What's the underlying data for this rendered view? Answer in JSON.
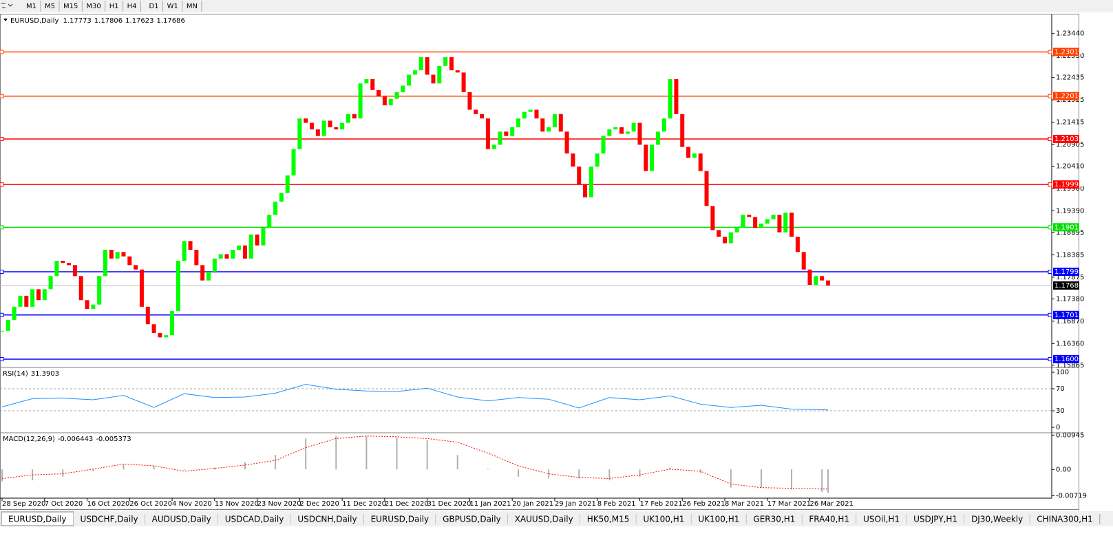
{
  "toolbar": {
    "timeframes": [
      "M1",
      "M5",
      "M15",
      "M30",
      "H1",
      "H4",
      "D1",
      "W1",
      "MN"
    ]
  },
  "tabs": [
    "EURUSD,Daily",
    "USDCHF,Daily",
    "AUDUSD,Daily",
    "USDCAD,Daily",
    "USDCNH,Daily",
    "EURUSD,Daily",
    "GBPUSD,Daily",
    "XAUUSD,Daily",
    "HK50,M15",
    "UK100,H1",
    "UK100,H1",
    "GER30,H1",
    "FRA40,H1",
    "USOil,H1",
    "USDJPY,H1",
    "DJ30,Weekly",
    "CHINA300,H1"
  ],
  "chart_data": [
    {
      "type": "candlestick",
      "title": "EURUSD,Daily",
      "quote": [
        1.17773,
        1.17806,
        1.17623,
        1.17686
      ],
      "up_color": "#00ff00",
      "down_color": "#ff0000",
      "values": [
        1.1665,
        1.169,
        1.172,
        1.1745,
        1.172,
        1.176,
        1.1735,
        1.176,
        1.179,
        1.1825,
        1.182,
        1.1815,
        1.179,
        1.1735,
        1.1715,
        1.1725,
        1.179,
        1.185,
        1.183,
        1.1845,
        1.1835,
        1.1815,
        1.1805,
        1.172,
        1.168,
        1.166,
        1.165,
        1.1655,
        1.171,
        1.1825,
        1.187,
        1.185,
        1.1815,
        1.178,
        1.18,
        1.183,
        1.184,
        1.183,
        1.185,
        1.186,
        1.183,
        1.1885,
        1.186,
        1.19,
        1.193,
        1.196,
        1.198,
        1.202,
        1.208,
        1.215,
        1.214,
        1.2125,
        1.211,
        1.2145,
        1.213,
        1.2125,
        1.214,
        1.216,
        1.215,
        1.223,
        1.224,
        1.2215,
        1.22,
        1.218,
        1.2195,
        1.221,
        1.2225,
        1.225,
        1.226,
        1.229,
        1.225,
        1.223,
        1.227,
        1.229,
        1.226,
        1.2255,
        1.221,
        1.217,
        1.216,
        1.215,
        1.208,
        1.209,
        1.212,
        1.211,
        1.213,
        1.215,
        1.2165,
        1.217,
        1.215,
        1.212,
        1.213,
        1.216,
        1.212,
        1.207,
        1.204,
        1.2,
        1.197,
        1.204,
        1.207,
        1.211,
        1.2125,
        1.213,
        1.2115,
        1.212,
        1.214,
        1.209,
        1.203,
        1.209,
        1.212,
        1.215,
        1.224,
        1.216,
        1.2085,
        1.206,
        1.207,
        1.203,
        1.195,
        1.1895,
        1.188,
        1.1865,
        1.189,
        1.19,
        1.193,
        1.1925,
        1.19,
        1.191,
        1.192,
        1.193,
        1.189,
        1.1935,
        1.188,
        1.1845,
        1.1805,
        1.177,
        1.179,
        1.178,
        1.17686
      ],
      "last": 1.17686,
      "xlim": [
        0,
        136
      ],
      "xticks": [
        {
          "value": 0,
          "label": "28 Sep 2020"
        },
        {
          "value": 7,
          "label": "7 Oct 2020"
        },
        {
          "value": 14,
          "label": "16 Oct 2020"
        },
        {
          "value": 21,
          "label": "26 Oct 2020"
        },
        {
          "value": 28,
          "label": "4 Nov 2020"
        },
        {
          "value": 35,
          "label": "13 Nov 2020"
        },
        {
          "value": 42,
          "label": "23 Nov 2020"
        },
        {
          "value": 49,
          "label": "2 Dec 2020"
        },
        {
          "value": 56,
          "label": "11 Dec 2020"
        },
        {
          "value": 63,
          "label": "21 Dec 2020"
        },
        {
          "value": 70,
          "label": "31 Dec 2020"
        },
        {
          "value": 77,
          "label": "11 Jan 2021"
        },
        {
          "value": 84,
          "label": "20 Jan 2021"
        },
        {
          "value": 91,
          "label": "29 Jan 2021"
        },
        {
          "value": 98,
          "label": "8 Feb 2021"
        },
        {
          "value": 105,
          "label": "17 Feb 2021"
        },
        {
          "value": 112,
          "label": "26 Feb 2021"
        },
        {
          "value": 119,
          "label": "8 Mar 2021"
        },
        {
          "value": 126,
          "label": "17 Mar 2021"
        },
        {
          "value": 133,
          "label": "26 Mar 2021"
        }
      ],
      "ylim": [
        1.1583,
        1.2386
      ],
      "yticks": [
        {
          "value": 1.2344,
          "label": "1.23440"
        },
        {
          "value": 1.2293,
          "label": "1.22930"
        },
        1.22435,
        1.21925,
        1.21415,
        1.20905,
        {
          "value": 1.2041,
          "label": "1.20410"
        },
        {
          "value": 1.199,
          "label": "1.19900"
        },
        {
          "value": 1.1939,
          "label": "1.19390"
        },
        1.18895,
        1.18385,
        1.17875,
        {
          "value": 1.1738,
          "label": "1.17380"
        },
        {
          "value": 1.1687,
          "label": "1.16870"
        },
        {
          "value": 1.1636,
          "label": "1.16360"
        },
        1.15865
      ],
      "levels": [
        {
          "value": 1.23019,
          "color": "#ff4000"
        },
        {
          "value": 1.2201,
          "label": "1.22010",
          "color": "#ff4000"
        },
        {
          "value": 1.21032,
          "color": "#ff0000"
        },
        {
          "value": 1.19992,
          "color": "#ff0000"
        },
        {
          "value": 1.19015,
          "color": "#00e000"
        },
        {
          "value": 1.17998,
          "color": "#0000ff"
        },
        {
          "value": 1.17012,
          "color": "#0000ff"
        },
        {
          "value": 1.16003,
          "color": "#0000ff"
        }
      ]
    },
    {
      "type": "line",
      "title": "RSI(14)",
      "color": "#1e90ff",
      "x": [
        0,
        5,
        10,
        15,
        20,
        25,
        30,
        35,
        40,
        45,
        50,
        55,
        60,
        65,
        70,
        75,
        80,
        85,
        90,
        95,
        100,
        105,
        110,
        115,
        120,
        125,
        130,
        135,
        136
      ],
      "values": [
        37,
        52,
        53,
        50,
        58,
        36,
        61,
        54,
        55,
        62,
        78,
        69,
        66,
        65,
        71,
        55,
        48,
        54,
        51,
        35,
        54,
        50,
        57,
        42,
        36,
        40,
        33,
        32,
        31.3903
      ],
      "xlim": [
        0,
        136
      ],
      "ylim": [
        -8.75,
        107.5
      ],
      "yticks": [
        0,
        30,
        70,
        100
      ],
      "levels": [
        30,
        70
      ]
    },
    {
      "type": "macd",
      "title": "MACD(12,26,9)",
      "main_color": "#b0b0b0",
      "signal_color": "#ff0000",
      "x": [
        0,
        5,
        10,
        15,
        20,
        25,
        30,
        35,
        40,
        45,
        50,
        55,
        60,
        65,
        70,
        75,
        80,
        85,
        90,
        95,
        100,
        105,
        110,
        115,
        120,
        125,
        130,
        135,
        136
      ],
      "main": [
        -0.0033,
        -0.003,
        -0.002,
        -0.0005,
        0.0015,
        0.001,
        -0.0002,
        0.0005,
        0.002,
        0.004,
        0.0085,
        0.0092,
        0.0092,
        0.0088,
        0.008,
        0.004,
        0.0002,
        -0.002,
        -0.0025,
        -0.0025,
        -0.003,
        -0.002,
        0.0005,
        -0.001,
        -0.005,
        -0.005,
        -0.0055,
        -0.0062,
        -0.006443
      ],
      "signal": [
        -0.0025,
        -0.0015,
        -0.0012,
        0.0001,
        0.0015,
        0.001,
        -0.0005,
        0.0003,
        0.0012,
        0.0025,
        0.006,
        0.0085,
        0.0092,
        0.009,
        0.0085,
        0.0075,
        0.0045,
        0.001,
        -0.0012,
        -0.0022,
        -0.0025,
        -0.0015,
        0.0001,
        -0.0005,
        -0.004,
        -0.005,
        -0.0052,
        -0.0054,
        -0.005373
      ],
      "xlim": [
        0,
        136
      ],
      "ylim": [
        -0.0079,
        0.0099
      ],
      "yticks": [
        0.00945,
        {
          "value": 0,
          "label": "0.00"
        },
        -0.00719
      ]
    }
  ]
}
